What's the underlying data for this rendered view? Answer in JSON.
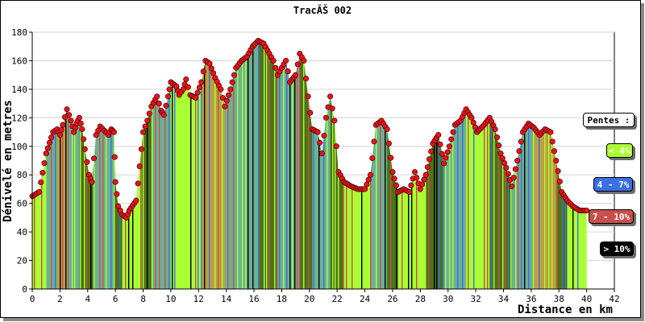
{
  "chart_data": {
    "type": "area",
    "title": "TracĂŠ 002",
    "xlabel": "Distance en km",
    "ylabel": "Dénivelé en metres",
    "xlim": [
      0,
      42
    ],
    "ylim": [
      0,
      180
    ],
    "x_ticks": [
      "0",
      "2",
      "4",
      "6",
      "8",
      "10",
      "12",
      "14",
      "16",
      "18",
      "20",
      "22",
      "24",
      "26",
      "28",
      "30",
      "32",
      "34",
      "36",
      "38",
      "40",
      "42"
    ],
    "y_ticks": [
      "0",
      "20",
      "40",
      "60",
      "80",
      "100",
      "120",
      "140",
      "160",
      "180"
    ],
    "grid": "horizontal",
    "legend_position": "right",
    "legend_title": "Pentes :",
    "legend": [
      {
        "label": "< 4%",
        "color": "#aaff33",
        "text_color": "#ffffff"
      },
      {
        "label": "4 - 7%",
        "color": "#3a6fe6",
        "text_color": "#ffffff"
      },
      {
        "label": "7 - 10%",
        "color": "#c8504a",
        "text_color": "#ffffff"
      },
      {
        "label": "> 10%",
        "color": "#000000",
        "text_color": "#ffffff"
      }
    ],
    "colors": {
      "point": "#e8141c",
      "fill_low": "#aaff33",
      "fill_mid": "#3a6fe6",
      "fill_high": "#c8504a",
      "fill_steep": "#000000"
    },
    "profile": [
      [
        0.0,
        65
      ],
      [
        0.5,
        68
      ],
      [
        1.0,
        95
      ],
      [
        1.5,
        110
      ],
      [
        1.8,
        112
      ],
      [
        2.0,
        108
      ],
      [
        2.2,
        115
      ],
      [
        2.5,
        126
      ],
      [
        2.8,
        118
      ],
      [
        3.0,
        110
      ],
      [
        3.2,
        116
      ],
      [
        3.4,
        120
      ],
      [
        3.6,
        112
      ],
      [
        3.8,
        98
      ],
      [
        4.1,
        80
      ],
      [
        4.3,
        75
      ],
      [
        4.6,
        108
      ],
      [
        4.9,
        114
      ],
      [
        5.2,
        111
      ],
      [
        5.5,
        108
      ],
      [
        5.7,
        112
      ],
      [
        5.9,
        110
      ],
      [
        6.0,
        75
      ],
      [
        6.2,
        58
      ],
      [
        6.5,
        52
      ],
      [
        6.8,
        50
      ],
      [
        7.0,
        55
      ],
      [
        7.5,
        62
      ],
      [
        8.0,
        110
      ],
      [
        8.3,
        118
      ],
      [
        8.6,
        128
      ],
      [
        9.0,
        135
      ],
      [
        9.3,
        125
      ],
      [
        9.5,
        122
      ],
      [
        9.8,
        135
      ],
      [
        10.0,
        145
      ],
      [
        10.4,
        142
      ],
      [
        10.6,
        136
      ],
      [
        10.9,
        140
      ],
      [
        11.1,
        147
      ],
      [
        11.4,
        136
      ],
      [
        11.8,
        134
      ],
      [
        12.2,
        145
      ],
      [
        12.5,
        160
      ],
      [
        12.8,
        158
      ],
      [
        13.2,
        148
      ],
      [
        13.6,
        140
      ],
      [
        13.9,
        128
      ],
      [
        14.3,
        140
      ],
      [
        14.7,
        155
      ],
      [
        15.1,
        160
      ],
      [
        15.5,
        163
      ],
      [
        15.9,
        170
      ],
      [
        16.3,
        174
      ],
      [
        16.7,
        172
      ],
      [
        17.1,
        165
      ],
      [
        17.4,
        160
      ],
      [
        17.7,
        150
      ],
      [
        18.0,
        155
      ],
      [
        18.3,
        160
      ],
      [
        18.6,
        145
      ],
      [
        19.0,
        150
      ],
      [
        19.3,
        165
      ],
      [
        19.6,
        160
      ],
      [
        19.9,
        135
      ],
      [
        20.2,
        112
      ],
      [
        20.6,
        110
      ],
      [
        20.9,
        95
      ],
      [
        21.2,
        120
      ],
      [
        21.5,
        135
      ],
      [
        21.8,
        118
      ],
      [
        22.1,
        82
      ],
      [
        22.5,
        75
      ],
      [
        23.0,
        72
      ],
      [
        23.5,
        70
      ],
      [
        24.0,
        70
      ],
      [
        24.4,
        80
      ],
      [
        24.8,
        115
      ],
      [
        25.2,
        118
      ],
      [
        25.6,
        112
      ],
      [
        26.0,
        82
      ],
      [
        26.4,
        68
      ],
      [
        26.8,
        70
      ],
      [
        27.2,
        68
      ],
      [
        27.6,
        82
      ],
      [
        28.0,
        70
      ],
      [
        28.4,
        80
      ],
      [
        28.9,
        102
      ],
      [
        29.3,
        108
      ],
      [
        29.7,
        88
      ],
      [
        30.1,
        100
      ],
      [
        30.5,
        115
      ],
      [
        30.9,
        118
      ],
      [
        31.3,
        126
      ],
      [
        31.7,
        120
      ],
      [
        32.1,
        110
      ],
      [
        32.6,
        115
      ],
      [
        33.0,
        120
      ],
      [
        33.4,
        112
      ],
      [
        33.8,
        95
      ],
      [
        34.2,
        85
      ],
      [
        34.6,
        72
      ],
      [
        35.0,
        90
      ],
      [
        35.4,
        110
      ],
      [
        35.8,
        116
      ],
      [
        36.2,
        113
      ],
      [
        36.6,
        108
      ],
      [
        37.0,
        112
      ],
      [
        37.4,
        110
      ],
      [
        37.8,
        90
      ],
      [
        38.2,
        68
      ],
      [
        38.6,
        62
      ],
      [
        39.0,
        58
      ],
      [
        39.5,
        55
      ],
      [
        40.0,
        55
      ]
    ],
    "slope_bands": [
      {
        "from": 0.0,
        "to": 1.0,
        "class": "low"
      },
      {
        "from": 1.0,
        "to": 1.8,
        "class": "mid"
      },
      {
        "from": 1.8,
        "to": 2.5,
        "class": "high"
      },
      {
        "from": 2.5,
        "to": 3.4,
        "class": "mid"
      },
      {
        "from": 3.4,
        "to": 4.4,
        "class": "steep"
      },
      {
        "from": 4.4,
        "to": 5.9,
        "class": "mid"
      },
      {
        "from": 5.9,
        "to": 6.5,
        "class": "steep"
      },
      {
        "from": 6.5,
        "to": 7.9,
        "class": "low"
      },
      {
        "from": 7.9,
        "to": 8.6,
        "class": "steep"
      },
      {
        "from": 8.6,
        "to": 10.0,
        "class": "mid"
      },
      {
        "from": 10.0,
        "to": 12.2,
        "class": "low"
      },
      {
        "from": 12.2,
        "to": 13.9,
        "class": "high"
      },
      {
        "from": 13.9,
        "to": 16.3,
        "class": "mid"
      },
      {
        "from": 16.3,
        "to": 17.7,
        "class": "steep"
      },
      {
        "from": 17.7,
        "to": 19.3,
        "class": "mid"
      },
      {
        "from": 19.3,
        "to": 20.2,
        "class": "steep"
      },
      {
        "from": 20.2,
        "to": 21.5,
        "class": "mid"
      },
      {
        "from": 21.5,
        "to": 22.5,
        "class": "steep"
      },
      {
        "from": 22.5,
        "to": 24.4,
        "class": "low"
      },
      {
        "from": 24.4,
        "to": 25.6,
        "class": "mid"
      },
      {
        "from": 25.6,
        "to": 26.4,
        "class": "steep"
      },
      {
        "from": 26.4,
        "to": 28.4,
        "class": "low"
      },
      {
        "from": 28.4,
        "to": 29.7,
        "class": "steep"
      },
      {
        "from": 29.7,
        "to": 31.3,
        "class": "mid"
      },
      {
        "from": 31.3,
        "to": 33.0,
        "class": "low"
      },
      {
        "from": 33.0,
        "to": 34.6,
        "class": "steep"
      },
      {
        "from": 34.6,
        "to": 36.2,
        "class": "mid"
      },
      {
        "from": 36.2,
        "to": 37.8,
        "class": "high"
      },
      {
        "from": 37.8,
        "to": 38.6,
        "class": "steep"
      },
      {
        "from": 38.6,
        "to": 40.0,
        "class": "low"
      }
    ]
  }
}
